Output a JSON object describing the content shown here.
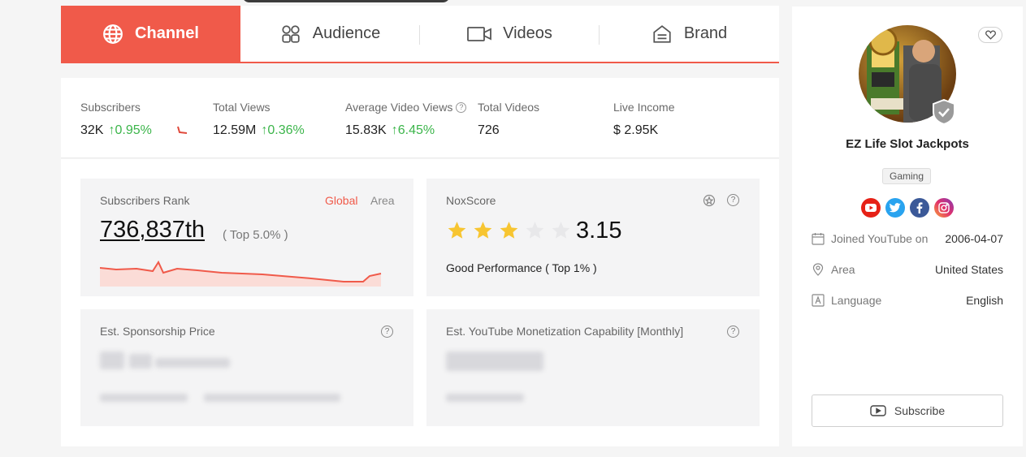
{
  "tabs": [
    {
      "label": "Channel",
      "icon": "globe-icon"
    },
    {
      "label": "Audience",
      "icon": "audience-icon"
    },
    {
      "label": "Videos",
      "icon": "video-camera-icon"
    },
    {
      "label": "Brand",
      "icon": "brand-icon"
    }
  ],
  "stats": {
    "subscribers": {
      "label": "Subscribers",
      "value": "32K",
      "change": "0.95%"
    },
    "total_views": {
      "label": "Total Views",
      "value": "12.59M",
      "change": "0.36%"
    },
    "avg_views": {
      "label": "Average Video Views",
      "value": "15.83K",
      "change": "6.45%"
    },
    "total_videos": {
      "label": "Total Videos",
      "value": "726"
    },
    "live_income": {
      "label": "Live Income",
      "value": "$ 2.95K"
    }
  },
  "rank_card": {
    "title": "Subscribers Rank",
    "global": "Global",
    "area": "Area",
    "rank": "736,837th",
    "top": "( Top 5.0% )"
  },
  "nox_card": {
    "title": "NoxScore",
    "rating": 3.15,
    "score": "3.15",
    "performance": "Good Performance ( Top 1% )"
  },
  "sponsor_card": {
    "title": "Est. Sponsorship Price"
  },
  "monetize_card": {
    "title": "Est. YouTube Monetization Capability [Monthly]"
  },
  "profile": {
    "name": "EZ Life Slot Jackpots",
    "category": "Gaming",
    "socials": [
      "youtube-icon",
      "twitter-icon",
      "facebook-icon",
      "instagram-icon"
    ],
    "joined_label": "Joined YouTube on",
    "joined_value": "2006-04-07",
    "area_label": "Area",
    "area_value": "United States",
    "language_label": "Language",
    "language_value": "English",
    "subscribe_label": "Subscribe"
  },
  "colors": {
    "accent": "#f05a4a",
    "up": "#3bb54a",
    "star": "#f7c531"
  }
}
